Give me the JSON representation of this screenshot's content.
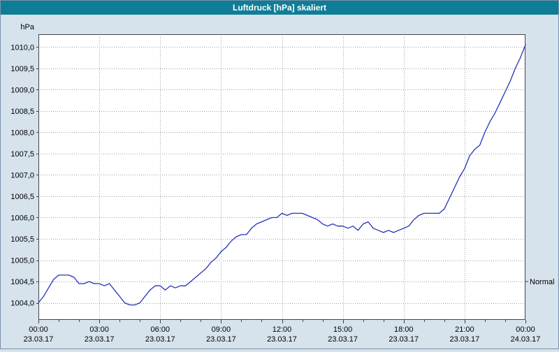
{
  "window": {
    "title": "Luftdruck [hPa] skaliert"
  },
  "colors": {
    "titlebar": "#0e7e96",
    "background": "#d6e2ec",
    "plot_background": "#ffffff",
    "grid": "#9aa0a6",
    "axis_border": "#444444",
    "line": "#2433bb",
    "text": "#000000"
  },
  "chart_data": {
    "type": "line",
    "title": "Luftdruck [hPa] skaliert",
    "xlabel": "",
    "ylabel": "hPa",
    "ylim": [
      1003.6,
      1010.3
    ],
    "xlim_hours": [
      0,
      24
    ],
    "grid": "dotted",
    "legend_position": "none",
    "y_ticks": [
      {
        "v": 1004.0,
        "label": "1004,0"
      },
      {
        "v": 1004.5,
        "label": "1004,5"
      },
      {
        "v": 1005.0,
        "label": "1005,0"
      },
      {
        "v": 1005.5,
        "label": "1005,5"
      },
      {
        "v": 1006.0,
        "label": "1006,0"
      },
      {
        "v": 1006.5,
        "label": "1006,5"
      },
      {
        "v": 1007.0,
        "label": "1007,0"
      },
      {
        "v": 1007.5,
        "label": "1007,5"
      },
      {
        "v": 1008.0,
        "label": "1008,0"
      },
      {
        "v": 1008.5,
        "label": "1008,5"
      },
      {
        "v": 1009.0,
        "label": "1009,0"
      },
      {
        "v": 1009.5,
        "label": "1009,5"
      },
      {
        "v": 1010.0,
        "label": "1010,0"
      }
    ],
    "x_ticks": [
      {
        "t": 0,
        "time": "00:00",
        "date": "23.03.17"
      },
      {
        "t": 3,
        "time": "03:00",
        "date": "23.03.17"
      },
      {
        "t": 6,
        "time": "06:00",
        "date": "23.03.17"
      },
      {
        "t": 9,
        "time": "09:00",
        "date": "23.03.17"
      },
      {
        "t": 12,
        "time": "12:00",
        "date": "23.03.17"
      },
      {
        "t": 15,
        "time": "15:00",
        "date": "23.03.17"
      },
      {
        "t": 18,
        "time": "18:00",
        "date": "23.03.17"
      },
      {
        "t": 21,
        "time": "21:00",
        "date": "23.03.17"
      },
      {
        "t": 24,
        "time": "00:00",
        "date": "24.03.17"
      }
    ],
    "annotations": [
      {
        "label": "Normal",
        "value": 1004.5,
        "side": "right"
      }
    ],
    "series": [
      {
        "name": "Luftdruck [hPa]",
        "color": "#2433bb",
        "x_hours": [
          0,
          0.25,
          0.5,
          0.75,
          1,
          1.25,
          1.5,
          1.75,
          2,
          2.25,
          2.5,
          2.75,
          3,
          3.25,
          3.5,
          3.75,
          4,
          4.25,
          4.5,
          4.75,
          5,
          5.25,
          5.5,
          5.75,
          6,
          6.25,
          6.5,
          6.75,
          7,
          7.25,
          7.5,
          7.75,
          8,
          8.25,
          8.5,
          8.75,
          9,
          9.25,
          9.5,
          9.75,
          10,
          10.25,
          10.5,
          10.75,
          11,
          11.25,
          11.5,
          11.75,
          12,
          12.25,
          12.5,
          12.75,
          13,
          13.25,
          13.5,
          13.75,
          14,
          14.25,
          14.5,
          14.75,
          15,
          15.25,
          15.5,
          15.75,
          16,
          16.25,
          16.5,
          16.75,
          17,
          17.25,
          17.5,
          17.75,
          18,
          18.25,
          18.5,
          18.75,
          19,
          19.25,
          19.5,
          19.75,
          20,
          20.25,
          20.5,
          20.75,
          21,
          21.25,
          21.5,
          21.75,
          22,
          22.25,
          22.5,
          22.75,
          23,
          23.25,
          23.5,
          23.75,
          24
        ],
        "values": [
          1004.0,
          1004.15,
          1004.35,
          1004.55,
          1004.65,
          1004.65,
          1004.65,
          1004.6,
          1004.45,
          1004.45,
          1004.5,
          1004.45,
          1004.45,
          1004.4,
          1004.45,
          1004.3,
          1004.15,
          1004.0,
          1003.95,
          1003.95,
          1004.0,
          1004.15,
          1004.3,
          1004.4,
          1004.4,
          1004.3,
          1004.4,
          1004.35,
          1004.4,
          1004.4,
          1004.5,
          1004.6,
          1004.7,
          1004.8,
          1004.95,
          1005.05,
          1005.2,
          1005.3,
          1005.45,
          1005.55,
          1005.6,
          1005.6,
          1005.75,
          1005.85,
          1005.9,
          1005.95,
          1006.0,
          1006.0,
          1006.1,
          1006.05,
          1006.1,
          1006.1,
          1006.1,
          1006.05,
          1006.0,
          1005.95,
          1005.85,
          1005.8,
          1005.85,
          1005.8,
          1005.8,
          1005.75,
          1005.8,
          1005.7,
          1005.85,
          1005.9,
          1005.75,
          1005.7,
          1005.65,
          1005.7,
          1005.65,
          1005.7,
          1005.75,
          1005.8,
          1005.95,
          1006.05,
          1006.1,
          1006.1,
          1006.1,
          1006.1,
          1006.2,
          1006.45,
          1006.7,
          1006.95,
          1007.15,
          1007.45,
          1007.6,
          1007.7,
          1008.0,
          1008.25,
          1008.45,
          1008.7,
          1008.95,
          1009.2,
          1009.5,
          1009.75,
          1010.05
        ]
      }
    ]
  }
}
